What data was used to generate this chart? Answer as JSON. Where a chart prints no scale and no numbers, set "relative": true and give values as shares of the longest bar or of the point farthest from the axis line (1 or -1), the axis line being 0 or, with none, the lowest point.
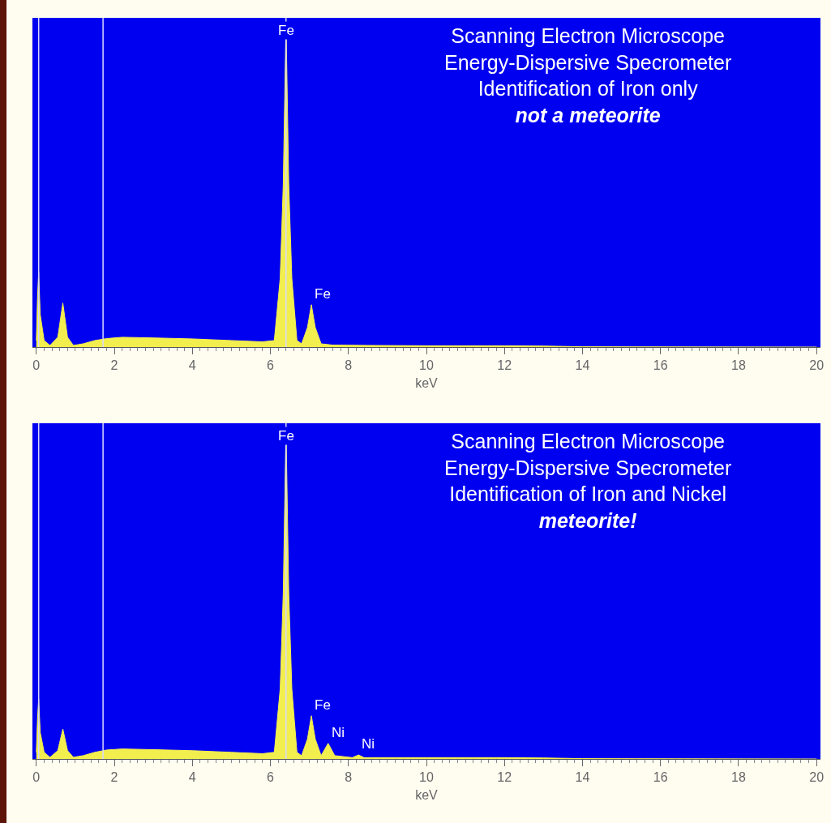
{
  "chart_data": [
    {
      "type": "area",
      "title": "Scanning Electron Microscope\nEnergy-Dispersive Specrometer\nIdentification of Iron only",
      "subtitle": "not a meteorite",
      "xlabel": "keV",
      "relative": true,
      "color": "#f2ee4e",
      "x": [
        0,
        0.03,
        0.06,
        0.1,
        0.2,
        0.35,
        0.55,
        0.68,
        0.8,
        0.95,
        1.2,
        1.5,
        1.8,
        2.2,
        3,
        4,
        5,
        5.8,
        6.1,
        6.25,
        6.33,
        6.4,
        6.47,
        6.55,
        6.68,
        6.8,
        6.95,
        7.05,
        7.15,
        7.3,
        7.6,
        8.5,
        10,
        12,
        13,
        14,
        20
      ],
      "values": [
        0.02,
        0.15,
        0.23,
        0.1,
        0.02,
        0.005,
        0.03,
        0.135,
        0.03,
        0.005,
        0.01,
        0.02,
        0.026,
        0.03,
        0.028,
        0.025,
        0.02,
        0.016,
        0.02,
        0.21,
        0.5,
        1,
        0.5,
        0.21,
        0.02,
        0.01,
        0.06,
        0.13,
        0.06,
        0.01,
        0.006,
        0.005,
        0.004,
        0.004,
        0.003,
        0.001,
        0
      ],
      "xlim": [
        -0.1,
        20.1
      ],
      "xticks": [
        0,
        2,
        4,
        6,
        8,
        10,
        12,
        14,
        16,
        18,
        20
      ],
      "grid": false,
      "ref_lines": [
        {
          "axis": "x",
          "value": 0.06,
          "color": "#d8d8ff"
        },
        {
          "axis": "x",
          "value": 1.71,
          "color": "#d8d8ff"
        },
        {
          "axis": "x",
          "value": 6.4,
          "color": "#d8d8ff"
        }
      ],
      "annotations": [
        {
          "text": "Fe",
          "x": 6.4,
          "y": 1
        },
        {
          "text": "Fe",
          "x": 7.05,
          "y": 0.13
        }
      ]
    },
    {
      "type": "area",
      "title": "Scanning Electron Microscope\nEnergy-Dispersive Specrometer\nIdentification of Iron and Nickel",
      "subtitle": "meteorite!",
      "xlabel": "keV",
      "relative": true,
      "color": "#f2ee4e",
      "x": [
        0,
        0.03,
        0.06,
        0.1,
        0.2,
        0.35,
        0.55,
        0.68,
        0.8,
        0.95,
        1.2,
        1.5,
        1.8,
        2.2,
        3,
        4,
        5,
        5.8,
        6.1,
        6.25,
        6.33,
        6.4,
        6.47,
        6.55,
        6.68,
        6.8,
        6.95,
        7.05,
        7.15,
        7.3,
        7.48,
        7.65,
        8.1,
        8.26,
        8.4,
        10,
        12,
        13,
        14,
        20
      ],
      "values": [
        0.02,
        0.12,
        0.18,
        0.08,
        0.02,
        0.005,
        0.025,
        0.09,
        0.025,
        0.005,
        0.01,
        0.02,
        0.027,
        0.03,
        0.028,
        0.025,
        0.02,
        0.016,
        0.02,
        0.21,
        0.5,
        1,
        0.5,
        0.21,
        0.02,
        0.01,
        0.06,
        0.13,
        0.06,
        0.01,
        0.047,
        0.01,
        0.004,
        0.012,
        0.004,
        0.004,
        0.004,
        0.003,
        0.001,
        0
      ],
      "xlim": [
        -0.1,
        20.1
      ],
      "xticks": [
        0,
        2,
        4,
        6,
        8,
        10,
        12,
        14,
        16,
        18,
        20
      ],
      "grid": false,
      "ref_lines": [
        {
          "axis": "x",
          "value": 0.06,
          "color": "#d8d8ff"
        },
        {
          "axis": "x",
          "value": 1.71,
          "color": "#d8d8ff"
        },
        {
          "axis": "x",
          "value": 6.4,
          "color": "#d8d8ff"
        }
      ],
      "annotations": [
        {
          "text": "Fe",
          "x": 6.4,
          "y": 1
        },
        {
          "text": "Fe",
          "x": 7.05,
          "y": 0.13
        },
        {
          "text": "Ni",
          "x": 7.48,
          "y": 0.047
        },
        {
          "text": "Ni",
          "x": 8.26,
          "y": 0.012
        }
      ]
    }
  ]
}
